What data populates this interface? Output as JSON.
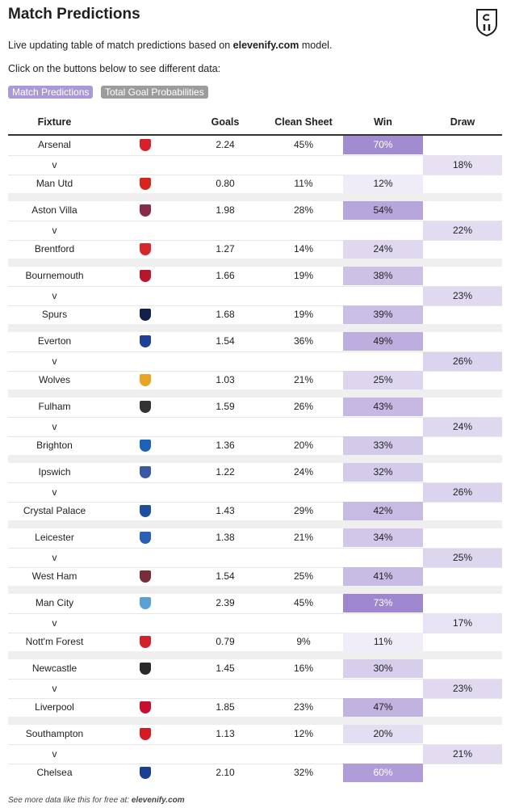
{
  "header": {
    "title": "Match Predictions",
    "intro_text": "Live updating table of match predictions based on ",
    "intro_site": "elevenify.com",
    "intro_suffix": " model.",
    "instruction": "Click on the buttons below to see different data:"
  },
  "buttons": {
    "match_predictions": "Match Predictions",
    "goal_probabilities": "Total Goal Probabilities"
  },
  "columns": {
    "fixture": "Fixture",
    "goals": "Goals",
    "clean_sheet": "Clean Sheet",
    "win": "Win",
    "draw": "Draw"
  },
  "separator": "v",
  "colors": {
    "accent": "#ab98d6",
    "inactive_button": "#9c9c9c",
    "scale_low": "#ffffff",
    "scale_high": "#9e87cf"
  },
  "matches": [
    {
      "home": {
        "team": "Arsenal",
        "crest": "arsenal-crest",
        "crest_color": "#d6202c",
        "goals": "2.24",
        "clean_sheet": "45%",
        "win": "70%",
        "win_value": 0.7
      },
      "draw": "18%",
      "draw_value": 0.18,
      "away": {
        "team": "Man Utd",
        "crest": "man-utd-crest",
        "crest_color": "#d4261c",
        "goals": "0.80",
        "clean_sheet": "11%",
        "win": "12%",
        "win_value": 0.12
      }
    },
    {
      "home": {
        "team": "Aston Villa",
        "crest": "aston-villa-crest",
        "crest_color": "#8a2a4b",
        "goals": "1.98",
        "clean_sheet": "28%",
        "win": "54%",
        "win_value": 0.54
      },
      "draw": "22%",
      "draw_value": 0.22,
      "away": {
        "team": "Brentford",
        "crest": "brentford-crest",
        "crest_color": "#d8262c",
        "goals": "1.27",
        "clean_sheet": "14%",
        "win": "24%",
        "win_value": 0.24
      }
    },
    {
      "home": {
        "team": "Bournemouth",
        "crest": "bournemouth-crest",
        "crest_color": "#b8162b",
        "goals": "1.66",
        "clean_sheet": "19%",
        "win": "38%",
        "win_value": 0.38
      },
      "draw": "23%",
      "draw_value": 0.23,
      "away": {
        "team": "Spurs",
        "crest": "spurs-crest",
        "crest_color": "#13204a",
        "goals": "1.68",
        "clean_sheet": "19%",
        "win": "39%",
        "win_value": 0.39
      }
    },
    {
      "home": {
        "team": "Everton",
        "crest": "everton-crest",
        "crest_color": "#1f3f98",
        "goals": "1.54",
        "clean_sheet": "36%",
        "win": "49%",
        "win_value": 0.49
      },
      "draw": "26%",
      "draw_value": 0.26,
      "away": {
        "team": "Wolves",
        "crest": "wolves-crest",
        "crest_color": "#e9a424",
        "goals": "1.03",
        "clean_sheet": "21%",
        "win": "25%",
        "win_value": 0.25
      }
    },
    {
      "home": {
        "team": "Fulham",
        "crest": "fulham-crest",
        "crest_color": "#333333",
        "goals": "1.59",
        "clean_sheet": "26%",
        "win": "43%",
        "win_value": 0.43
      },
      "draw": "24%",
      "draw_value": 0.24,
      "away": {
        "team": "Brighton",
        "crest": "brighton-crest",
        "crest_color": "#1b62b8",
        "goals": "1.36",
        "clean_sheet": "20%",
        "win": "33%",
        "win_value": 0.33
      }
    },
    {
      "home": {
        "team": "Ipswich",
        "crest": "ipswich-crest",
        "crest_color": "#3a58a6",
        "goals": "1.22",
        "clean_sheet": "24%",
        "win": "32%",
        "win_value": 0.32
      },
      "draw": "26%",
      "draw_value": 0.26,
      "away": {
        "team": "Crystal Palace",
        "crest": "crystal-palace-crest",
        "crest_color": "#1c4fa0",
        "goals": "1.43",
        "clean_sheet": "29%",
        "win": "42%",
        "win_value": 0.42
      }
    },
    {
      "home": {
        "team": "Leicester",
        "crest": "leicester-crest",
        "crest_color": "#2960b3",
        "goals": "1.38",
        "clean_sheet": "21%",
        "win": "34%",
        "win_value": 0.34
      },
      "draw": "25%",
      "draw_value": 0.25,
      "away": {
        "team": "West Ham",
        "crest": "west-ham-crest",
        "crest_color": "#7b2c3a",
        "goals": "1.54",
        "clean_sheet": "25%",
        "win": "41%",
        "win_value": 0.41
      }
    },
    {
      "home": {
        "team": "Man City",
        "crest": "man-city-crest",
        "crest_color": "#5aa0d8",
        "goals": "2.39",
        "clean_sheet": "45%",
        "win": "73%",
        "win_value": 0.73
      },
      "draw": "17%",
      "draw_value": 0.17,
      "away": {
        "team": "Nott'm Forest",
        "crest": "nottm-forest-crest",
        "crest_color": "#d3212c",
        "goals": "0.79",
        "clean_sheet": "9%",
        "win": "11%",
        "win_value": 0.11
      }
    },
    {
      "home": {
        "team": "Newcastle",
        "crest": "newcastle-crest",
        "crest_color": "#2a2a2a",
        "goals": "1.45",
        "clean_sheet": "16%",
        "win": "30%",
        "win_value": 0.3
      },
      "draw": "23%",
      "draw_value": 0.23,
      "away": {
        "team": "Liverpool",
        "crest": "liverpool-crest",
        "crest_color": "#c8102e",
        "goals": "1.85",
        "clean_sheet": "23%",
        "win": "47%",
        "win_value": 0.47
      }
    },
    {
      "home": {
        "team": "Southampton",
        "crest": "southampton-crest",
        "crest_color": "#d71920",
        "goals": "1.13",
        "clean_sheet": "12%",
        "win": "20%",
        "win_value": 0.2
      },
      "draw": "21%",
      "draw_value": 0.21,
      "away": {
        "team": "Chelsea",
        "crest": "chelsea-crest",
        "crest_color": "#1a3f94",
        "goals": "2.10",
        "clean_sheet": "32%",
        "win": "60%",
        "win_value": 0.6
      }
    }
  ],
  "footer": {
    "text": "See more data like this for free at: ",
    "site": "elevenify.com"
  }
}
